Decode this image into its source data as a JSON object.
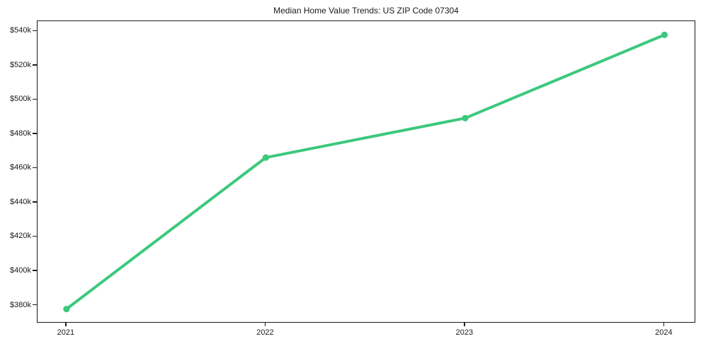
{
  "chart_data": {
    "type": "line",
    "title": "Median Home Value Trends: US ZIP Code 07304",
    "categories": [
      "2021",
      "2022",
      "2023",
      "2024"
    ],
    "series": [
      {
        "name": "median_home_value",
        "values": [
          377900,
          466300,
          489300,
          537900
        ]
      }
    ],
    "xlabel": "",
    "ylabel": "",
    "ylim": [
      369500,
      545900
    ],
    "ytick_values": [
      380000,
      400000,
      420000,
      440000,
      460000,
      480000,
      500000,
      520000,
      540000
    ],
    "ytick_labels": [
      "$380k",
      "$400k",
      "$420k",
      "$440k",
      "$460k",
      "$480k",
      "$500k",
      "$520k",
      "$540k"
    ],
    "grid": false,
    "legend_position": "none",
    "line_color": "#3cc87d",
    "marker_color": "#3cc87d",
    "marker_shape": "circle",
    "axis_color": "#1a1a1a",
    "background_color": "#ffffff"
  }
}
